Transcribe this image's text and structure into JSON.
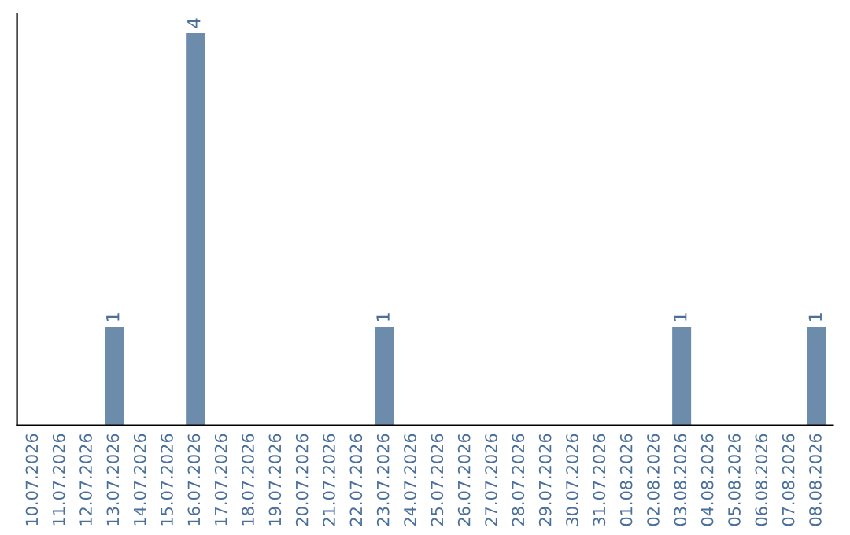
{
  "chart_data": {
    "type": "bar",
    "categories": [
      "10.07.2026",
      "11.07.2026",
      "12.07.2026",
      "13.07.2026",
      "14.07.2026",
      "15.07.2026",
      "16.07.2026",
      "17.07.2026",
      "18.07.2026",
      "19.07.2026",
      "20.07.2026",
      "21.07.2026",
      "22.07.2026",
      "23.07.2026",
      "24.07.2026",
      "25.07.2026",
      "26.07.2026",
      "27.07.2026",
      "28.07.2026",
      "29.07.2026",
      "30.07.2026",
      "31.07.2026",
      "01.08.2026",
      "02.08.2026",
      "03.08.2026",
      "04.08.2026",
      "05.08.2026",
      "06.08.2026",
      "07.08.2026",
      "08.08.2026"
    ],
    "values": [
      0,
      0,
      0,
      1,
      0,
      0,
      4,
      0,
      0,
      0,
      0,
      0,
      0,
      1,
      0,
      0,
      0,
      0,
      0,
      0,
      0,
      0,
      0,
      0,
      1,
      0,
      0,
      0,
      0,
      1
    ],
    "value_labels": [
      null,
      null,
      null,
      "1",
      null,
      null,
      "4",
      null,
      null,
      null,
      null,
      null,
      null,
      "1",
      null,
      null,
      null,
      null,
      null,
      null,
      null,
      null,
      null,
      null,
      "1",
      null,
      null,
      null,
      null,
      "1"
    ],
    "color": "#6d8cab",
    "grid": false,
    "tick_labels": "x"
  }
}
